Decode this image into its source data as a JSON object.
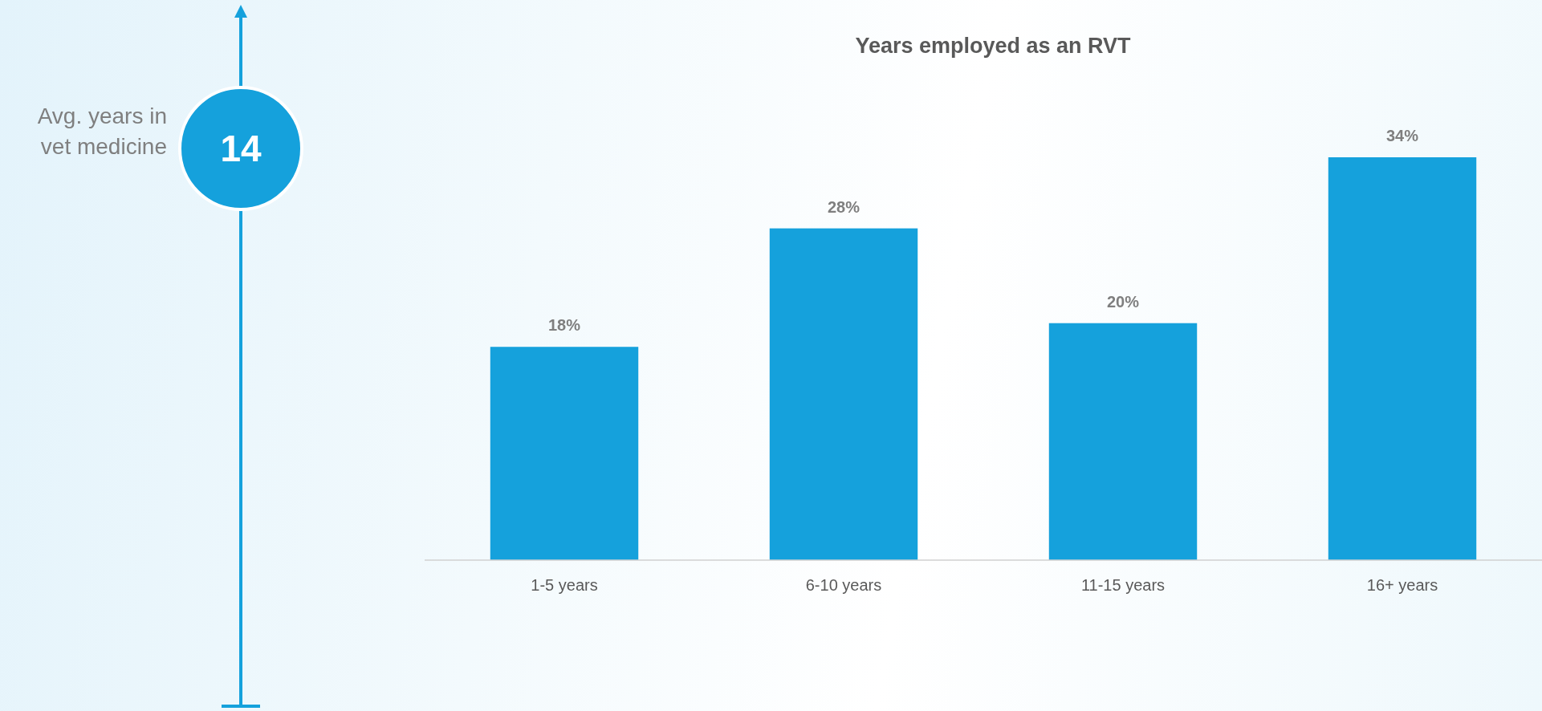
{
  "chart_data": {
    "type": "bar",
    "title": "Years employed as an RVT",
    "categories": [
      "1-5 years",
      "6-10 years",
      "11-15 years",
      "16+ years"
    ],
    "values": [
      18,
      28,
      20,
      34
    ],
    "value_labels": [
      "18%",
      "28%",
      "20%",
      "34%"
    ],
    "color": "#15a1dc",
    "annotations": [
      "Avg. years in vet medicine",
      "14"
    ]
  }
}
